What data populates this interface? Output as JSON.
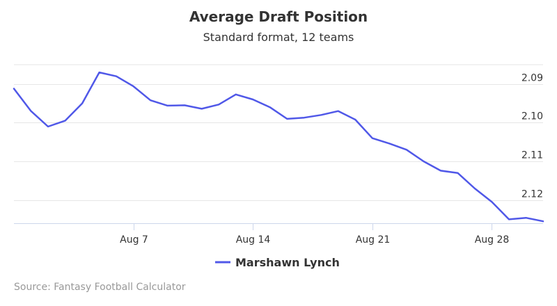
{
  "chart_data": {
    "type": "line",
    "title": "Average Draft Position",
    "subtitle": "Standard format, 12 teams",
    "x": [
      "Jul 31",
      "Aug 1",
      "Aug 2",
      "Aug 3",
      "Aug 4",
      "Aug 5",
      "Aug 6",
      "Aug 7",
      "Aug 8",
      "Aug 9",
      "Aug 10",
      "Aug 11",
      "Aug 12",
      "Aug 13",
      "Aug 14",
      "Aug 15",
      "Aug 16",
      "Aug 17",
      "Aug 18",
      "Aug 19",
      "Aug 20",
      "Aug 21",
      "Aug 22",
      "Aug 23",
      "Aug 24",
      "Aug 25",
      "Aug 26",
      "Aug 27",
      "Aug 28",
      "Aug 29",
      "Aug 30",
      "Aug 31"
    ],
    "x_tick_labels": [
      "Aug 7",
      "Aug 14",
      "Aug 21",
      "Aug 28"
    ],
    "y_ticks": [
      2.085,
      2.095,
      2.105,
      2.115
    ],
    "y_tick_labels": [
      "2.09",
      "2.10",
      "2.11",
      "2.12"
    ],
    "ylim": [
      2.08,
      2.121
    ],
    "y_reversed": true,
    "y_axis_side": "right",
    "grid": true,
    "legend_position": "bottom-center",
    "series": [
      {
        "name": "Marshawn Lynch",
        "color": "#5058e8",
        "values": [
          2.0862,
          2.092,
          2.096,
          2.0945,
          2.09,
          2.082,
          2.083,
          2.0856,
          2.0892,
          2.0906,
          2.0905,
          2.0914,
          2.0903,
          2.0877,
          2.089,
          2.091,
          2.094,
          2.0937,
          2.093,
          2.092,
          2.0942,
          2.099,
          2.1004,
          2.102,
          2.105,
          2.1074,
          2.108,
          2.112,
          2.1155,
          2.12,
          2.1196,
          2.1205
        ]
      }
    ]
  },
  "credits": "Source: Fantasy Football Calculator"
}
